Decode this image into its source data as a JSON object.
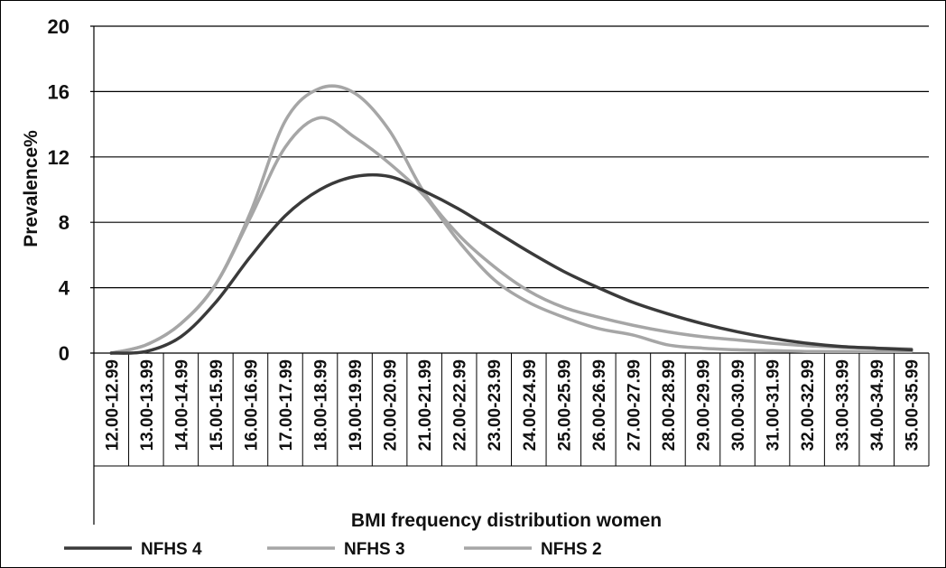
{
  "chart_data": {
    "type": "line",
    "xlabel": "BMI frequency distribution women",
    "ylabel": "Prevalence%",
    "ylim": [
      0,
      20
    ],
    "yticks": [
      0,
      4,
      8,
      12,
      16,
      20
    ],
    "grid": "horizontal",
    "legend_position": "bottom",
    "categories": [
      "12.00-12.99",
      "13.00-13.99",
      "14.00-14.99",
      "15.00-15.99",
      "16.00-16.99",
      "17.00-17.99",
      "18.00-18.99",
      "19.00-19.99",
      "20.00-20.99",
      "21.00-21.99",
      "22.00-22.99",
      "23.00-23.99",
      "24.00-24.99",
      "25.00-25.99",
      "26.00-26.99",
      "27.00-27.99",
      "28.00-28.99",
      "29.00-29.99",
      "30.00-30.99",
      "31.00-31.99",
      "32.00-32.99",
      "33.00-33.99",
      "34.00-34.99",
      "35.00-35.99"
    ],
    "series": [
      {
        "name": "NFHS 4",
        "color": "#3a3a3a",
        "values": [
          0,
          0.1,
          1.0,
          3.1,
          5.9,
          8.4,
          10.0,
          10.8,
          10.8,
          9.9,
          8.8,
          7.5,
          6.2,
          5.0,
          4.0,
          3.1,
          2.4,
          1.8,
          1.3,
          0.9,
          0.6,
          0.4,
          0.3,
          0.2
        ]
      },
      {
        "name": "NFHS 3",
        "color": "#a6a6a6",
        "values": [
          0,
          0.5,
          1.8,
          4.2,
          8.3,
          12.6,
          14.4,
          13.2,
          11.6,
          9.6,
          6.8,
          4.5,
          3.1,
          2.2,
          1.5,
          1.1,
          0.5,
          0.3,
          0.2,
          0.15,
          0.1,
          0.1,
          0.1,
          0.1
        ]
      },
      {
        "name": "NFHS 2",
        "color": "#a6a6a6",
        "values": [
          0,
          0.5,
          1.8,
          4.2,
          8.6,
          14.2,
          16.2,
          15.9,
          13.6,
          9.8,
          7.2,
          5.3,
          3.8,
          2.8,
          2.2,
          1.7,
          1.3,
          1.0,
          0.8,
          0.6,
          0.45,
          0.35,
          0.3,
          0.25
        ]
      }
    ]
  }
}
